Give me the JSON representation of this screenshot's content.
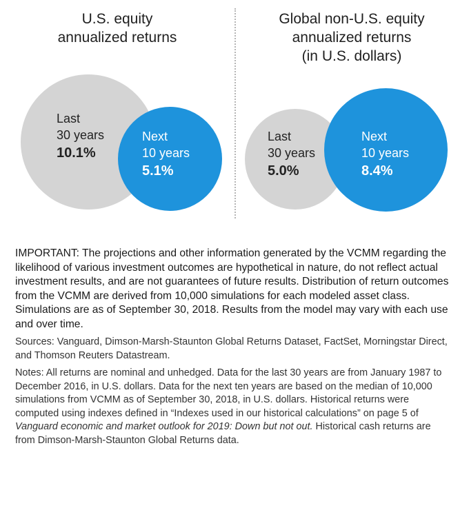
{
  "chart_data": {
    "type": "bubble",
    "panels": [
      {
        "title_lines": [
          "U.S. equity",
          "annualized returns"
        ],
        "bubbles": [
          {
            "label_lines": [
              "Last",
              "30 years"
            ],
            "value": 10.1,
            "display": "10.1%",
            "color": "#d4d4d4"
          },
          {
            "label_lines": [
              "Next",
              "10 years"
            ],
            "value": 5.1,
            "display": "5.1%",
            "color": "#1e93dc"
          }
        ]
      },
      {
        "title_lines": [
          "Global non-U.S. equity",
          "annualized returns",
          "(in U.S. dollars)"
        ],
        "bubbles": [
          {
            "label_lines": [
              "Last",
              "30 years"
            ],
            "value": 5.0,
            "display": "5.0%",
            "color": "#d4d4d4"
          },
          {
            "label_lines": [
              "Next",
              "10 years"
            ],
            "value": 8.4,
            "display": "8.4%",
            "color": "#1e93dc"
          }
        ]
      }
    ]
  },
  "footnotes": {
    "important": "IMPORTANT: The projections and other information generated by the VCMM regarding the likelihood of various investment outcomes are hypothetical in nature, do not reflect actual investment results, and are not guarantees of future results. Distribution of return outcomes from the VCMM are derived from 10,000 simulations for each modeled asset class. Simulations are as of September 30, 2018. Results from the model may vary with each use and over time.",
    "sources": "Sources: Vanguard, Dimson-Marsh-Staunton Global Returns Dataset, FactSet, Morningstar Direct, and Thomson Reuters Datastream.",
    "notes_before": "Notes: All returns are nominal and unhedged. Data for the last 30 years are from January 1987 to December 2016, in U.S. dollars. Data for the next ten years are based on the median of 10,000 simulations from VCMM as of September 30, 2018, in U.S. dollars. Historical returns were computed using indexes defined in “Indexes used in our historical calculations” on page 5 of ",
    "notes_italic": "Vanguard economic and market outlook for 2019: Down but not out.",
    "notes_after": " Historical cash returns are from Dimson-Marsh-Staunton Global Returns data."
  }
}
